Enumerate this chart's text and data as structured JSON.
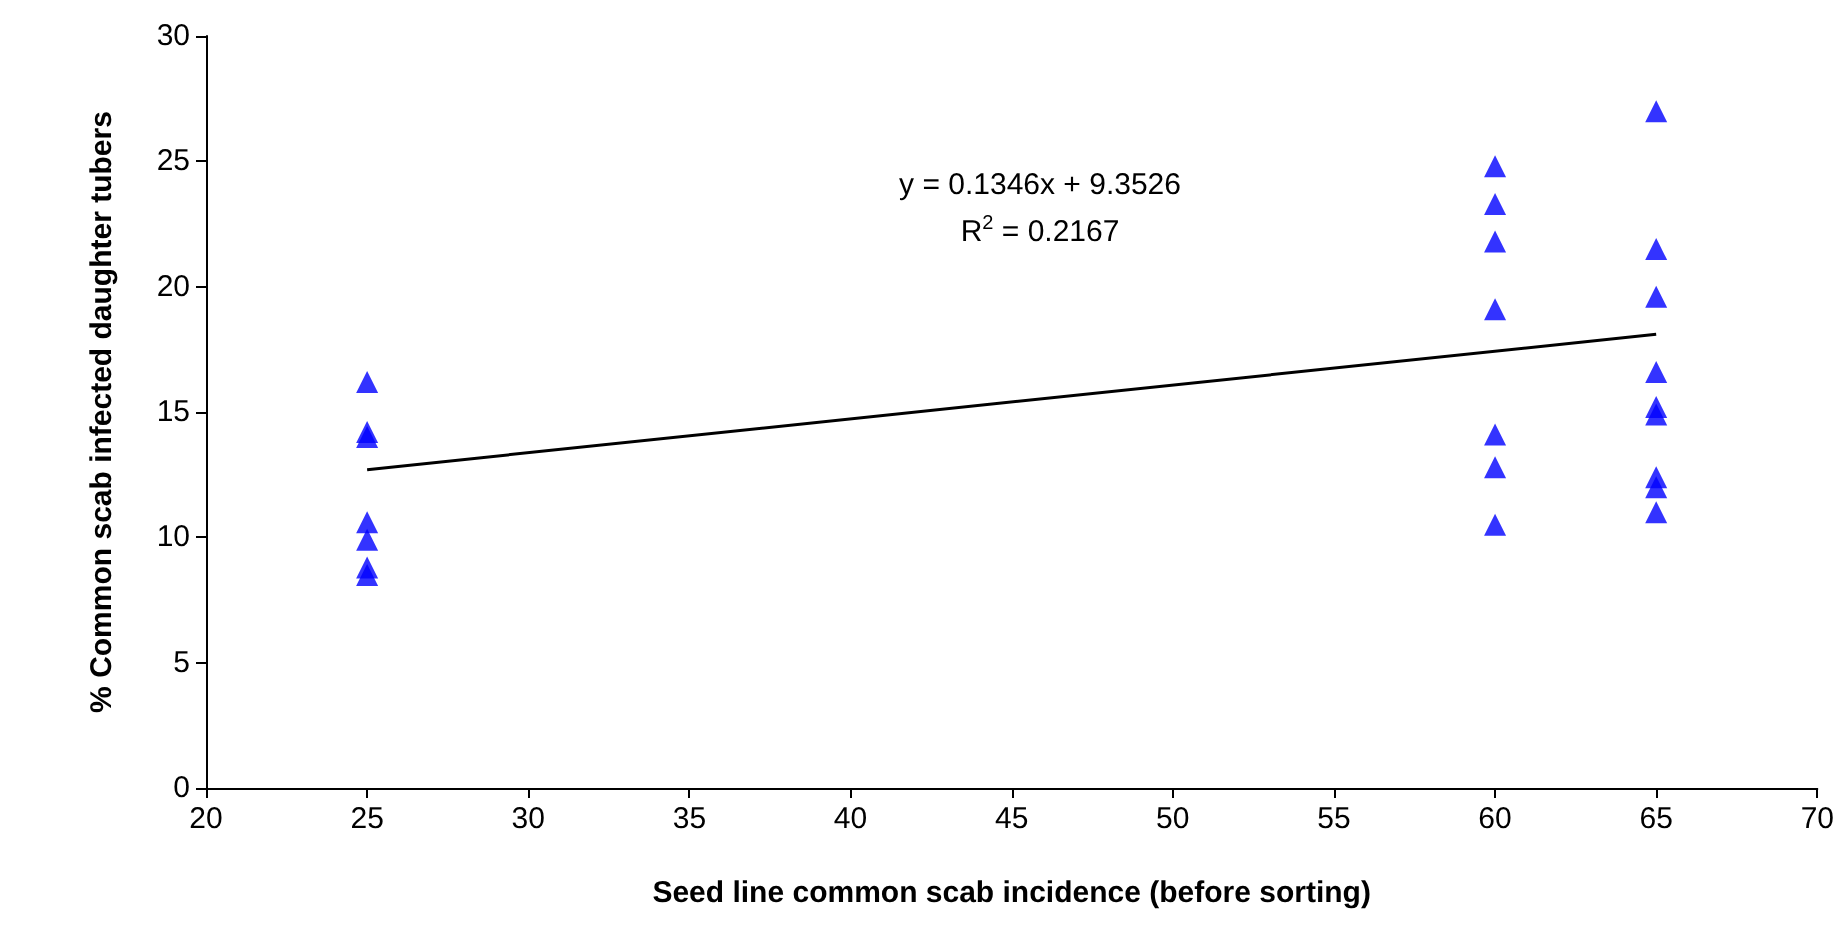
{
  "chart_data": {
    "type": "scatter",
    "xlabel": "Seed line common scab incidence (before sorting)",
    "ylabel": "% Common scab infected daughter tubers",
    "series": [
      {
        "color": "#0000ff",
        "marker": "triangle",
        "x": [
          25,
          25,
          25,
          25,
          25,
          25,
          25,
          60,
          60,
          60,
          60,
          60,
          60,
          60,
          65,
          65,
          65,
          65,
          65,
          65,
          65,
          65,
          65
        ],
        "values": [
          16.2,
          14.2,
          14.0,
          10.6,
          9.9,
          8.8,
          8.5,
          24.8,
          23.3,
          21.8,
          19.1,
          14.1,
          12.8,
          10.5,
          27.0,
          21.5,
          19.6,
          16.6,
          15.2,
          14.9,
          12.4,
          12.0,
          11.0
        ]
      },
      {
        "type": "line",
        "color": "#000000",
        "marker": "none",
        "x": [
          25,
          65
        ],
        "values": [
          12.7,
          18.1
        ]
      }
    ],
    "annotations": [
      "y = 0.1346x + 9.3526",
      "R$^{2}$ = 0.2167"
    ],
    "xlim": [
      20,
      70
    ],
    "xticks": [
      20,
      25,
      30,
      35,
      40,
      45,
      50,
      55,
      60,
      65,
      70
    ],
    "ylim": [
      0,
      30
    ],
    "yticks": [
      0,
      5,
      10,
      15,
      20,
      25,
      30
    ],
    "grid": false
  }
}
